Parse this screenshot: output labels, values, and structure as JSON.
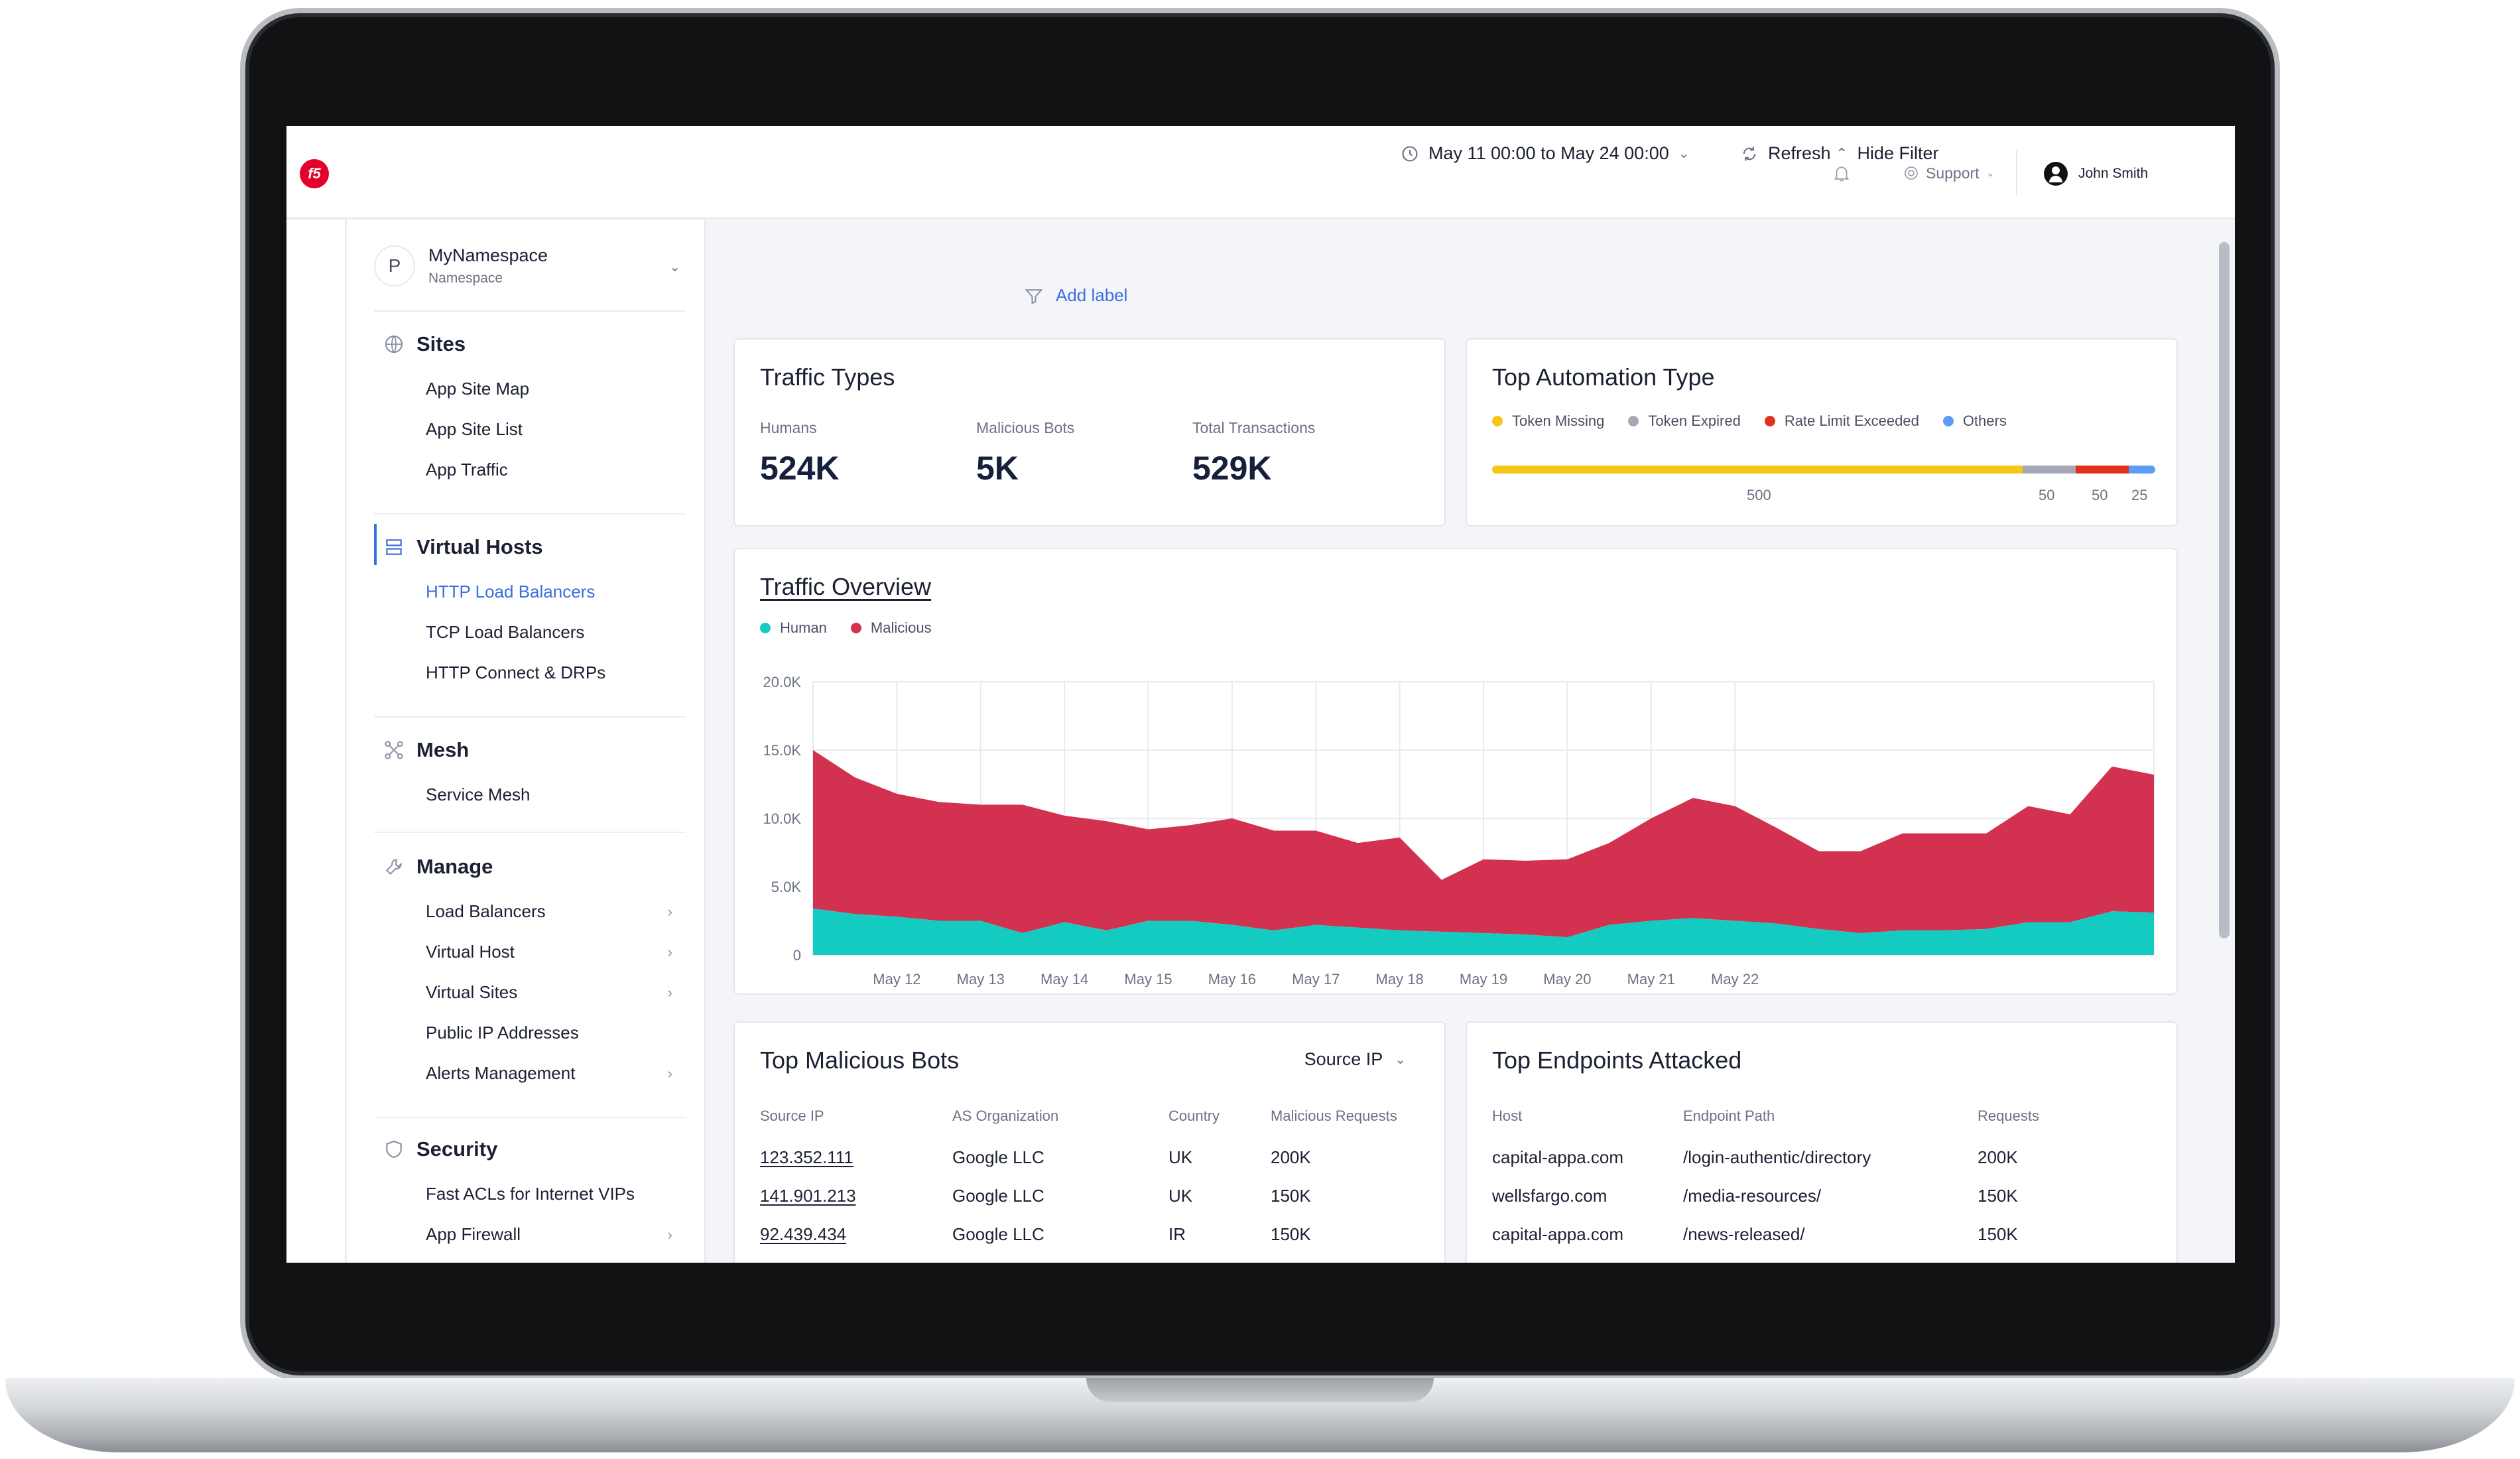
{
  "header": {
    "support_label": "Support",
    "user_name": "John Smith"
  },
  "namespace": {
    "badge": "P",
    "name": "MyNamespace",
    "sub": "Namespace"
  },
  "sidebar": {
    "groups": [
      {
        "title": "Sites",
        "icon": "globe-icon",
        "items": [
          {
            "label": "App Site Map"
          },
          {
            "label": "App Site List"
          },
          {
            "label": "App Traffic"
          }
        ]
      },
      {
        "title": "Virtual Hosts",
        "icon": "server-icon",
        "items": [
          {
            "label": "HTTP Load Balancers"
          },
          {
            "label": "TCP Load Balancers"
          },
          {
            "label": "HTTP Connect & DRPs"
          }
        ]
      },
      {
        "title": "Mesh",
        "icon": "mesh-icon",
        "items": [
          {
            "label": "Service Mesh"
          }
        ]
      },
      {
        "title": "Manage",
        "icon": "wrench-icon",
        "items": [
          {
            "label": "Load Balancers"
          },
          {
            "label": "Virtual Host"
          },
          {
            "label": "Virtual Sites"
          },
          {
            "label": "Public IP Addresses"
          },
          {
            "label": "Alerts Management"
          }
        ]
      },
      {
        "title": "Security",
        "icon": "shield-icon",
        "items": [
          {
            "label": "Fast ACLs for Internet VIPs"
          },
          {
            "label": "App Firewall"
          }
        ]
      }
    ],
    "expand_label": "»"
  },
  "filters": {
    "date_range": "May 11 00:00 to May 24 00:00",
    "refresh_label": "Refresh",
    "hide_filter_label": "Hide Filter",
    "add_label": "Add label"
  },
  "traffic_types": {
    "title": "Traffic Types",
    "stats": [
      {
        "label": "Humans",
        "value": "524K"
      },
      {
        "label": "Malicious Bots",
        "value": "5K"
      },
      {
        "label": "Total Transactions",
        "value": "529K"
      }
    ]
  },
  "automation": {
    "title": "Top Automation Type",
    "legend": [
      {
        "label": "Token Missing",
        "color": "#f5c518",
        "value": 500,
        "value_label": "500"
      },
      {
        "label": "Token Expired",
        "color": "#a4a8b4",
        "value": 50,
        "value_label": "50"
      },
      {
        "label": "Rate Limit Exceeded",
        "color": "#e0301e",
        "value": 50,
        "value_label": "50"
      },
      {
        "label": "Others",
        "color": "#5b9cf5",
        "value": 25,
        "value_label": "25"
      }
    ]
  },
  "overview": {
    "title": "Traffic Overview",
    "legend_human": "Human",
    "legend_malicious": "Malicious",
    "color_human": "#14cbc2",
    "color_malicious": "#d33150"
  },
  "chart_data": {
    "type": "area",
    "stacked": true,
    "title": "Traffic Overview",
    "ylim": [
      0,
      20000
    ],
    "y_ticks": [
      "20.0K",
      "15.0K",
      "10.0K",
      "5.0K",
      "0"
    ],
    "x_tick_labels": [
      "May 12",
      "May 13",
      "May 14",
      "May 15",
      "May 16",
      "May 17",
      "May 18",
      "May 19",
      "May 20",
      "May 21",
      "May 22"
    ],
    "grid": true,
    "legend_position": "top-left",
    "points_per_day": 2,
    "series": [
      {
        "name": "Human",
        "values": [
          3400,
          3000,
          2800,
          2500,
          2500,
          1600,
          2400,
          1800,
          2500,
          2500,
          2200,
          1800,
          2200,
          2000,
          1800,
          1700,
          1600,
          1500,
          1300,
          2200,
          2500,
          2700,
          2500,
          2300,
          1900,
          1600,
          1800,
          1800,
          1900,
          2400,
          2400,
          3200,
          3100
        ]
      },
      {
        "name": "Malicious",
        "values": [
          11600,
          10000,
          9000,
          8700,
          8500,
          9400,
          7800,
          8000,
          6700,
          7000,
          7800,
          7300,
          6900,
          6200,
          6800,
          3800,
          5400,
          5400,
          5700,
          6000,
          7500,
          8800,
          8400,
          7000,
          5700,
          6000,
          7100,
          7100,
          7000,
          8500,
          7900,
          10600,
          10100
        ]
      }
    ]
  },
  "bots": {
    "title": "Top Malicious Bots",
    "select": "Source IP",
    "headers": [
      "Source IP",
      "AS Organization",
      "Country",
      "Malicious Requests"
    ],
    "rows": [
      [
        "123.352.111",
        "Google LLC",
        "UK",
        "200K"
      ],
      [
        "141.901.213",
        "Google LLC",
        "UK",
        "150K"
      ],
      [
        "92.439.434",
        "Google LLC",
        "IR",
        "150K"
      ]
    ]
  },
  "endpoints": {
    "title": "Top Endpoints Attacked",
    "headers": [
      "Host",
      "Endpoint Path",
      "Requests"
    ],
    "rows": [
      [
        "capital-appa.com",
        "/login-authentic/directory",
        "200K"
      ],
      [
        "wellsfargo.com",
        "/media-resources/",
        "150K"
      ],
      [
        "capital-appa.com",
        "/news-released/",
        "150K"
      ]
    ]
  }
}
